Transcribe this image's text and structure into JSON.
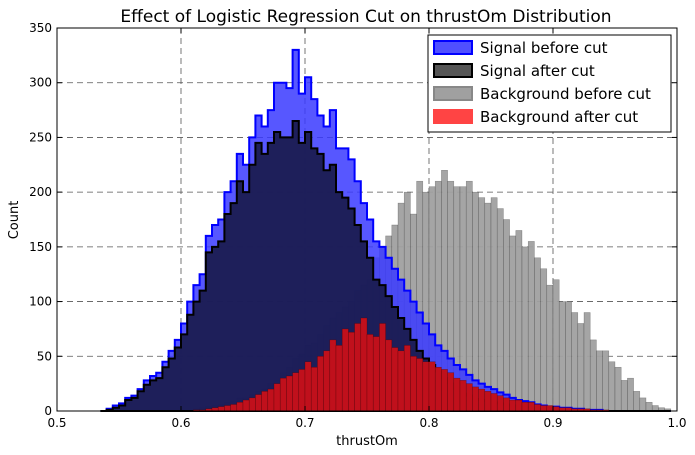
{
  "chart_data": {
    "type": "histogram",
    "title": "Effect of Logistic Regression Cut on thrustOm Distribution",
    "xlabel": "thrustOm",
    "ylabel": "Count",
    "xlim": [
      0.5,
      1.0
    ],
    "ylim": [
      0,
      350
    ],
    "xticks": [
      "0.5",
      "0.6",
      "0.7",
      "0.8",
      "0.9",
      "1.0"
    ],
    "yticks": [
      "0",
      "50",
      "100",
      "150",
      "200",
      "250",
      "300",
      "350"
    ],
    "grid": true,
    "legend_position": "top-right",
    "bin_range": [
      0.535,
      0.995
    ],
    "bin_count": 92,
    "series": [
      {
        "name": "Background before cut",
        "style": "bar",
        "color": "#a0a0a0",
        "values": [
          0,
          0,
          0,
          0,
          0,
          0,
          0,
          0,
          0,
          0,
          0,
          0,
          0,
          0,
          0,
          2,
          3,
          4,
          5,
          6,
          8,
          9,
          12,
          12,
          15,
          18,
          20,
          25,
          28,
          35,
          40,
          48,
          52,
          60,
          62,
          70,
          78,
          85,
          90,
          95,
          100,
          110,
          115,
          120,
          140,
          150,
          160,
          170,
          190,
          200,
          180,
          210,
          200,
          205,
          210,
          220,
          210,
          205,
          205,
          210,
          200,
          195,
          190,
          195,
          185,
          175,
          160,
          165,
          150,
          155,
          140,
          130,
          115,
          120,
          100,
          100,
          90,
          80,
          90,
          65,
          55,
          55,
          45,
          40,
          28,
          30,
          18,
          12,
          8,
          5,
          3,
          2
        ]
      },
      {
        "name": "Signal before cut",
        "style": "step",
        "color": "#0000ff",
        "values": [
          0,
          2,
          5,
          7,
          12,
          14,
          20,
          28,
          32,
          35,
          45,
          55,
          65,
          80,
          100,
          115,
          125,
          160,
          170,
          175,
          200,
          210,
          235,
          225,
          250,
          270,
          260,
          275,
          300,
          300,
          295,
          330,
          290,
          305,
          285,
          270,
          260,
          275,
          240,
          240,
          230,
          210,
          190,
          175,
          155,
          150,
          140,
          130,
          120,
          110,
          100,
          90,
          80,
          70,
          60,
          55,
          48,
          42,
          38,
          33,
          28,
          25,
          22,
          20,
          17,
          15,
          12,
          10,
          9,
          8,
          6,
          5,
          4,
          4,
          3,
          3,
          2,
          2,
          1,
          1,
          1,
          0,
          0,
          0,
          0,
          0,
          0,
          0,
          0,
          0,
          0,
          0
        ]
      },
      {
        "name": "Signal after cut",
        "style": "step",
        "color": "#000000",
        "fill": "#191a4c",
        "values": [
          0,
          1,
          3,
          5,
          10,
          12,
          18,
          24,
          28,
          30,
          40,
          48,
          58,
          70,
          88,
          100,
          110,
          145,
          150,
          155,
          180,
          190,
          210,
          200,
          225,
          245,
          235,
          245,
          255,
          250,
          250,
          265,
          245,
          255,
          240,
          235,
          220,
          225,
          200,
          195,
          185,
          170,
          155,
          140,
          120,
          115,
          105,
          95,
          85,
          75,
          65,
          55,
          48,
          42,
          36,
          30,
          25,
          20,
          16,
          14,
          11,
          10,
          9,
          8,
          7,
          6,
          5,
          4,
          4,
          3,
          2,
          2,
          2,
          1,
          1,
          1,
          0,
          0,
          0,
          0,
          0,
          0,
          0,
          0,
          0,
          0,
          0,
          0,
          0,
          0,
          0,
          0
        ]
      },
      {
        "name": "Background after cut",
        "style": "bar",
        "color": "#ff4444",
        "values": [
          0,
          0,
          0,
          0,
          0,
          0,
          0,
          0,
          0,
          0,
          0,
          0,
          0,
          0,
          0,
          1,
          1,
          2,
          3,
          4,
          5,
          6,
          8,
          10,
          12,
          15,
          18,
          20,
          25,
          30,
          32,
          35,
          38,
          45,
          40,
          50,
          55,
          65,
          60,
          75,
          72,
          80,
          85,
          70,
          68,
          80,
          65,
          58,
          55,
          60,
          50,
          48,
          45,
          45,
          40,
          38,
          35,
          30,
          28,
          25,
          22,
          20,
          18,
          16,
          14,
          12,
          10,
          10,
          8,
          8,
          6,
          5,
          5,
          4,
          3,
          3,
          2,
          2,
          2,
          1,
          1,
          1,
          0,
          0,
          0,
          0,
          0,
          0,
          0,
          0,
          0,
          0
        ]
      }
    ],
    "legend": [
      {
        "label": "Signal before cut",
        "swatch": "#5050ff",
        "edge": "#0000ff"
      },
      {
        "label": "Signal after cut",
        "swatch": "#555555",
        "edge": "#000000"
      },
      {
        "label": "Background before cut",
        "swatch": "#a0a0a0",
        "edge": "#888888"
      },
      {
        "label": "Background after cut",
        "swatch": "#ff4444",
        "edge": "#ff4444"
      }
    ]
  }
}
